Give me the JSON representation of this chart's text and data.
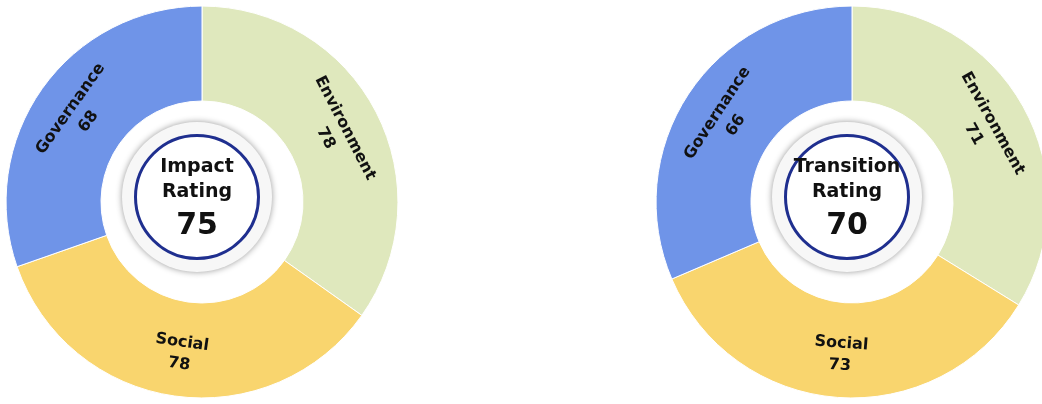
{
  "chart_data": [
    {
      "type": "donut",
      "title": "Impact Rating",
      "annotations": [
        "75"
      ],
      "categories": [
        "Environment",
        "Social",
        "Governance"
      ],
      "values": [
        78,
        78,
        68
      ],
      "colors": [
        "#dfe8bd",
        "#f9d56e",
        "#6f94e8"
      ],
      "data_labels": true
    },
    {
      "type": "donut",
      "title": "Transition Rating",
      "annotations": [
        "70"
      ],
      "categories": [
        "Environment",
        "Social",
        "Governance"
      ],
      "values": [
        71,
        73,
        66
      ],
      "colors": [
        "#dfe8bd",
        "#f9d56e",
        "#6f94e8"
      ],
      "data_labels": true
    }
  ]
}
